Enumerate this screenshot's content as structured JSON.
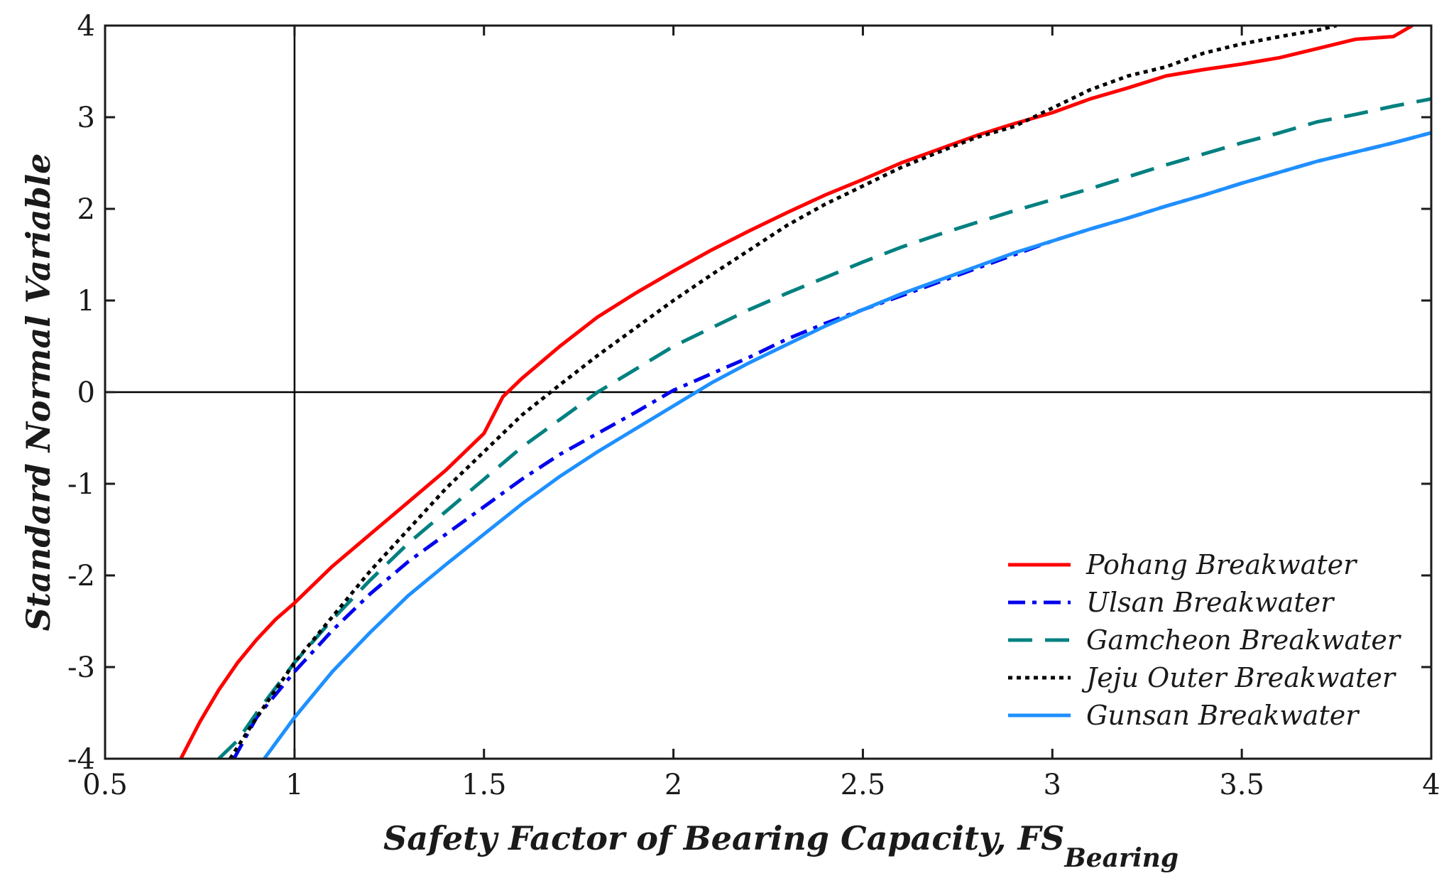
{
  "chart_data": {
    "type": "line",
    "title": "",
    "xlabel": "Safety Factor of Bearing Capacity, FS",
    "xlabel_subscript": "Bearing",
    "ylabel": "Standard Normal Variable",
    "xlim": [
      0.5,
      4
    ],
    "ylim": [
      -4,
      4
    ],
    "x_ticks": [
      0.5,
      1,
      1.5,
      2,
      2.5,
      3,
      3.5,
      4
    ],
    "x_tick_labels": [
      "0.5",
      "1",
      "1.5",
      "2",
      "2.5",
      "3",
      "3.5",
      "4"
    ],
    "y_ticks": [
      -4,
      -3,
      -2,
      -1,
      0,
      1,
      2,
      3,
      4
    ],
    "y_tick_labels": [
      "-4",
      "-3",
      "-2",
      "-1",
      "0",
      "1",
      "2",
      "3",
      "4"
    ],
    "reference_lines": {
      "x": 1,
      "y": 0
    },
    "legend_position": "bottom-right",
    "series": [
      {
        "name": "Pohang Breakwater",
        "color": "#ff0000",
        "style": "solid",
        "points": [
          [
            0.7,
            -4.0
          ],
          [
            0.75,
            -3.6
          ],
          [
            0.8,
            -3.25
          ],
          [
            0.85,
            -2.95
          ],
          [
            0.9,
            -2.7
          ],
          [
            0.95,
            -2.48
          ],
          [
            1.0,
            -2.3
          ],
          [
            1.1,
            -1.9
          ],
          [
            1.2,
            -1.55
          ],
          [
            1.3,
            -1.2
          ],
          [
            1.4,
            -0.85
          ],
          [
            1.5,
            -0.45
          ],
          [
            1.55,
            -0.05
          ],
          [
            1.6,
            0.15
          ],
          [
            1.7,
            0.5
          ],
          [
            1.8,
            0.82
          ],
          [
            1.9,
            1.08
          ],
          [
            2.0,
            1.32
          ],
          [
            2.1,
            1.55
          ],
          [
            2.2,
            1.76
          ],
          [
            2.3,
            1.96
          ],
          [
            2.4,
            2.15
          ],
          [
            2.5,
            2.32
          ],
          [
            2.6,
            2.5
          ],
          [
            2.7,
            2.65
          ],
          [
            2.8,
            2.8
          ],
          [
            2.9,
            2.93
          ],
          [
            3.0,
            3.05
          ],
          [
            3.1,
            3.2
          ],
          [
            3.2,
            3.32
          ],
          [
            3.3,
            3.45
          ],
          [
            3.4,
            3.52
          ],
          [
            3.5,
            3.58
          ],
          [
            3.6,
            3.65
          ],
          [
            3.7,
            3.75
          ],
          [
            3.8,
            3.85
          ],
          [
            3.9,
            3.88
          ],
          [
            3.95,
            4.0
          ]
        ]
      },
      {
        "name": "Ulsan Breakwater",
        "color": "#0000ee",
        "style": "dashdot",
        "points": [
          [
            0.84,
            -4.0
          ],
          [
            0.9,
            -3.55
          ],
          [
            1.0,
            -3.05
          ],
          [
            1.1,
            -2.6
          ],
          [
            1.2,
            -2.2
          ],
          [
            1.3,
            -1.85
          ],
          [
            1.4,
            -1.55
          ],
          [
            1.5,
            -1.25
          ],
          [
            1.6,
            -0.95
          ],
          [
            1.7,
            -0.68
          ],
          [
            1.8,
            -0.45
          ],
          [
            1.9,
            -0.22
          ],
          [
            2.0,
            0.02
          ],
          [
            2.1,
            0.2
          ],
          [
            2.2,
            0.38
          ],
          [
            2.3,
            0.58
          ],
          [
            2.4,
            0.75
          ],
          [
            2.5,
            0.9
          ],
          [
            2.6,
            1.05
          ],
          [
            2.7,
            1.2
          ],
          [
            2.8,
            1.35
          ],
          [
            2.9,
            1.5
          ],
          [
            3.0,
            1.65
          ],
          [
            3.1,
            1.78
          ],
          [
            3.2,
            1.9
          ],
          [
            3.3,
            2.03
          ],
          [
            3.4,
            2.15
          ],
          [
            3.5,
            2.28
          ],
          [
            3.6,
            2.4
          ],
          [
            3.7,
            2.52
          ],
          [
            3.8,
            2.62
          ],
          [
            3.9,
            2.72
          ],
          [
            4.0,
            2.83
          ]
        ]
      },
      {
        "name": "Gamcheon Breakwater",
        "color": "#008080",
        "style": "dashed",
        "points": [
          [
            0.8,
            -4.0
          ],
          [
            0.85,
            -3.8
          ],
          [
            0.9,
            -3.5
          ],
          [
            1.0,
            -2.95
          ],
          [
            1.1,
            -2.48
          ],
          [
            1.2,
            -2.05
          ],
          [
            1.3,
            -1.65
          ],
          [
            1.4,
            -1.3
          ],
          [
            1.5,
            -0.95
          ],
          [
            1.6,
            -0.6
          ],
          [
            1.7,
            -0.3
          ],
          [
            1.8,
            0.0
          ],
          [
            1.9,
            0.25
          ],
          [
            2.0,
            0.5
          ],
          [
            2.1,
            0.7
          ],
          [
            2.2,
            0.9
          ],
          [
            2.3,
            1.08
          ],
          [
            2.4,
            1.25
          ],
          [
            2.5,
            1.42
          ],
          [
            2.6,
            1.58
          ],
          [
            2.7,
            1.72
          ],
          [
            2.8,
            1.85
          ],
          [
            2.9,
            1.98
          ],
          [
            3.0,
            2.1
          ],
          [
            3.1,
            2.22
          ],
          [
            3.2,
            2.35
          ],
          [
            3.3,
            2.48
          ],
          [
            3.4,
            2.6
          ],
          [
            3.5,
            2.72
          ],
          [
            3.6,
            2.83
          ],
          [
            3.7,
            2.95
          ],
          [
            3.8,
            3.03
          ],
          [
            3.9,
            3.12
          ],
          [
            4.0,
            3.2
          ]
        ]
      },
      {
        "name": "Jeju Outer Breakwater",
        "color": "#000000",
        "style": "dotted",
        "points": [
          [
            0.83,
            -4.0
          ],
          [
            0.9,
            -3.55
          ],
          [
            1.0,
            -2.95
          ],
          [
            1.1,
            -2.45
          ],
          [
            1.2,
            -1.95
          ],
          [
            1.3,
            -1.5
          ],
          [
            1.4,
            -1.05
          ],
          [
            1.5,
            -0.65
          ],
          [
            1.6,
            -0.25
          ],
          [
            1.7,
            0.08
          ],
          [
            1.8,
            0.4
          ],
          [
            1.9,
            0.7
          ],
          [
            2.0,
            1.0
          ],
          [
            2.1,
            1.28
          ],
          [
            2.2,
            1.55
          ],
          [
            2.3,
            1.82
          ],
          [
            2.4,
            2.05
          ],
          [
            2.5,
            2.25
          ],
          [
            2.6,
            2.45
          ],
          [
            2.7,
            2.62
          ],
          [
            2.8,
            2.78
          ],
          [
            2.9,
            2.9
          ],
          [
            3.0,
            3.1
          ],
          [
            3.1,
            3.3
          ],
          [
            3.2,
            3.45
          ],
          [
            3.3,
            3.55
          ],
          [
            3.4,
            3.7
          ],
          [
            3.5,
            3.8
          ],
          [
            3.6,
            3.88
          ],
          [
            3.7,
            3.95
          ],
          [
            3.75,
            4.0
          ]
        ]
      },
      {
        "name": "Gunsan Breakwater",
        "color": "#1e90ff",
        "style": "solid",
        "points": [
          [
            0.92,
            -4.0
          ],
          [
            1.0,
            -3.55
          ],
          [
            1.1,
            -3.05
          ],
          [
            1.2,
            -2.62
          ],
          [
            1.3,
            -2.22
          ],
          [
            1.4,
            -1.88
          ],
          [
            1.5,
            -1.55
          ],
          [
            1.6,
            -1.22
          ],
          [
            1.7,
            -0.92
          ],
          [
            1.8,
            -0.65
          ],
          [
            1.9,
            -0.4
          ],
          [
            2.0,
            -0.15
          ],
          [
            2.1,
            0.1
          ],
          [
            2.2,
            0.32
          ],
          [
            2.3,
            0.52
          ],
          [
            2.4,
            0.72
          ],
          [
            2.5,
            0.9
          ],
          [
            2.6,
            1.07
          ],
          [
            2.7,
            1.22
          ],
          [
            2.8,
            1.37
          ],
          [
            2.9,
            1.52
          ],
          [
            3.0,
            1.65
          ],
          [
            3.1,
            1.78
          ],
          [
            3.2,
            1.9
          ],
          [
            3.3,
            2.03
          ],
          [
            3.4,
            2.15
          ],
          [
            3.5,
            2.28
          ],
          [
            3.6,
            2.4
          ],
          [
            3.7,
            2.52
          ],
          [
            3.8,
            2.62
          ],
          [
            3.9,
            2.72
          ],
          [
            4.0,
            2.83
          ]
        ]
      }
    ]
  }
}
